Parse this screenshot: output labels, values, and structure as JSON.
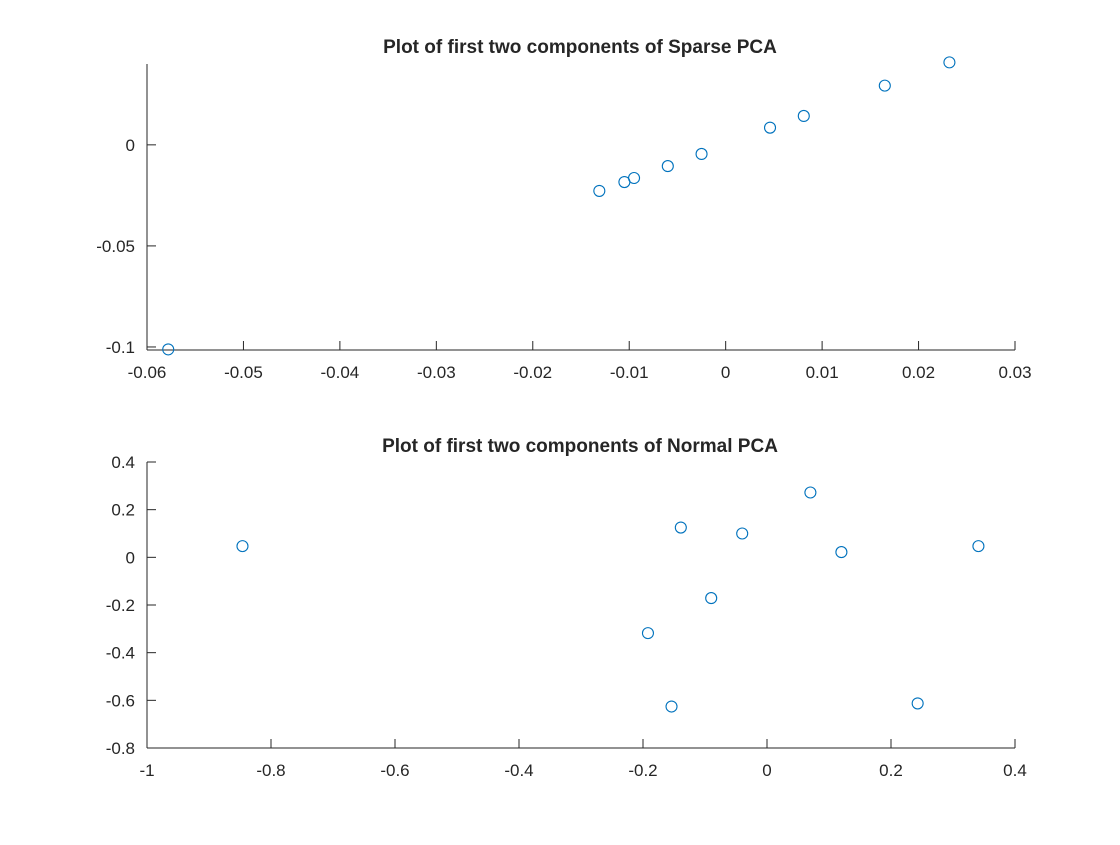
{
  "figure": {
    "marker_color": "#0072BD",
    "axis_color": "#262626"
  },
  "chart_data": [
    {
      "type": "scatter",
      "title": "Plot of first two components of Sparse PCA",
      "xlabel": "",
      "ylabel": "",
      "xlim": [
        -0.06,
        0.03
      ],
      "ylim": [
        -0.1015,
        0.04
      ],
      "xticks": [
        -0.06,
        -0.05,
        -0.04,
        -0.03,
        -0.02,
        -0.01,
        0,
        0.01,
        0.02,
        0.03
      ],
      "xtick_labels": [
        "-0.06",
        "-0.05",
        "-0.04",
        "-0.03",
        "-0.02",
        "-0.01",
        "0",
        "0.01",
        "0.02",
        "0.03"
      ],
      "yticks": [
        -0.1,
        -0.05,
        0
      ],
      "ytick_labels": [
        "-0.1",
        "-0.05",
        "0"
      ],
      "grid": false,
      "marker": "circle",
      "points": [
        {
          "x": -0.0578,
          "y": -0.1012
        },
        {
          "x": -0.0131,
          "y": -0.0228
        },
        {
          "x": -0.0105,
          "y": -0.0184
        },
        {
          "x": -0.0095,
          "y": -0.0164
        },
        {
          "x": -0.006,
          "y": -0.0105
        },
        {
          "x": -0.0025,
          "y": -0.0045
        },
        {
          "x": 0.0046,
          "y": 0.0085
        },
        {
          "x": 0.0081,
          "y": 0.0143
        },
        {
          "x": 0.0165,
          "y": 0.0293
        },
        {
          "x": 0.0232,
          "y": 0.0408
        }
      ]
    },
    {
      "type": "scatter",
      "title": "Plot of first two components of Normal PCA",
      "xlabel": "",
      "ylabel": "",
      "xlim": [
        -1,
        0.4
      ],
      "ylim": [
        -0.8,
        0.4
      ],
      "xticks": [
        -1,
        -0.8,
        -0.6,
        -0.4,
        -0.2,
        0,
        0.2,
        0.4
      ],
      "xtick_labels": [
        "-1",
        "-0.8",
        "-0.6",
        "-0.4",
        "-0.2",
        "0",
        "0.2",
        "0.4"
      ],
      "yticks": [
        -0.8,
        -0.6,
        -0.4,
        -0.2,
        0,
        0.2,
        0.4
      ],
      "ytick_labels": [
        "-0.8",
        "-0.6",
        "-0.4",
        "-0.2",
        "0",
        "0.2",
        "0.4"
      ],
      "grid": false,
      "marker": "circle",
      "points": [
        {
          "x": -0.846,
          "y": 0.047
        },
        {
          "x": -0.192,
          "y": -0.318
        },
        {
          "x": -0.154,
          "y": -0.626
        },
        {
          "x": -0.139,
          "y": 0.125
        },
        {
          "x": -0.09,
          "y": -0.171
        },
        {
          "x": -0.04,
          "y": 0.1
        },
        {
          "x": 0.07,
          "y": 0.272
        },
        {
          "x": 0.12,
          "y": 0.022
        },
        {
          "x": 0.243,
          "y": -0.613
        },
        {
          "x": 0.341,
          "y": 0.047
        }
      ]
    }
  ]
}
